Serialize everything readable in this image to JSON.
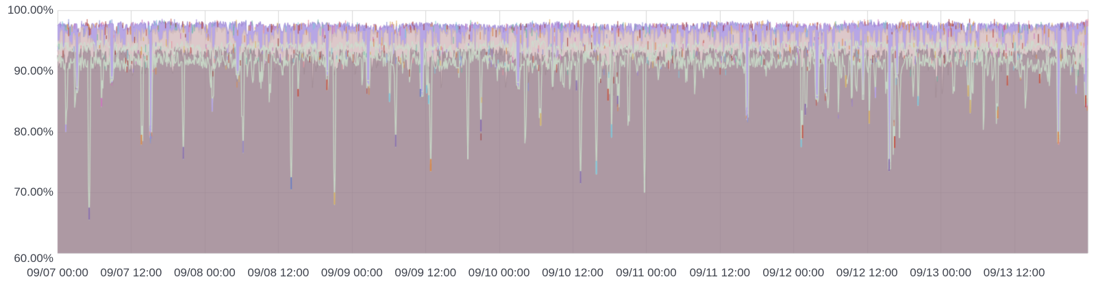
{
  "chart_data": {
    "type": "area",
    "title": "",
    "xlabel": "",
    "ylabel": "",
    "description": "Dense high-resolution percentage time series (monitoring-style graph) spanning 7 days; many overlapping translucent area/line series hover between 90% and 98% with frequent narrow downward spikes reaching 65%-85%",
    "ylim": [
      60,
      100
    ],
    "grid": true,
    "legend_position": "none",
    "background_color": "#ffffff",
    "label_color": "#3e424c",
    "grid_color": "#d8d8d8",
    "grid_overlay_color": "rgba(70,50,65,0.055)",
    "y_ticks": [
      {
        "label": "100.00%",
        "value": 100
      },
      {
        "label": "90.00%",
        "value": 90
      },
      {
        "label": "80.00%",
        "value": 80
      },
      {
        "label": "70.00%",
        "value": 70
      },
      {
        "label": "60.00%",
        "value": 60
      }
    ],
    "x_ticks": [
      "09/07 00:00",
      "09/07 12:00",
      "09/08 00:00",
      "09/08 12:00",
      "09/09 00:00",
      "09/09 12:00",
      "09/10 00:00",
      "09/10 12:00",
      "09/11 00:00",
      "09/11 12:00",
      "09/12 00:00",
      "09/12 12:00",
      "09/13 00:00",
      "09/13 12:00"
    ],
    "x_tick_interval_hours": 12,
    "x_total_intervals": 14,
    "points": 1500,
    "seed": 1337,
    "envelope_top_pct": 98.2,
    "series": [
      {
        "name": "lavender-band",
        "role": "area",
        "fill": "#b3a1e4",
        "stroke": "#a48fd8",
        "alpha": 0.95,
        "base": 97.7,
        "jitter": 0.4,
        "walk": 0.12,
        "dip_prob": 0.05,
        "dip_min": 0.5,
        "dip_max": 2.2,
        "dip_width": 3,
        "max": 98.4
      },
      {
        "name": "beige-band",
        "role": "area",
        "fill": "#dec9c8",
        "stroke": "#d2bab8",
        "alpha": 0.97,
        "base": 96.6,
        "jitter": 0.55,
        "walk": 0.18,
        "dip_prob": 0.17,
        "dip_min": 1.0,
        "dip_max": 5.0,
        "dip_width": 4,
        "deep_prob": 0.013,
        "deep_min": 6.5,
        "deep_max": 10.0,
        "max": 97.8
      },
      {
        "name": "mauve-base",
        "role": "area",
        "fill": "#ab97a1",
        "stroke": "#a18c96",
        "alpha": 0.97,
        "base": 92.9,
        "jitter": 0.85,
        "walk": 0.3,
        "dip_prob": 0.07,
        "dip_min": 1.0,
        "dip_max": 4.0,
        "dip_width": 5,
        "deep_prob": 0.006,
        "deep_min": 4.5,
        "deep_max": 6.5,
        "max": 95.3
      },
      {
        "name": "sage-upper-line",
        "role": "line",
        "stroke": "#cfdbce",
        "line_width": 1.2,
        "base": 94.1,
        "jitter": 0.85,
        "walk": 0.2,
        "dip_prob": 0.05,
        "dip_min": 1.0,
        "dip_max": 3.5,
        "dip_width": 2,
        "max": 96.8
      },
      {
        "name": "sage-main-line",
        "role": "line",
        "stroke": "#c7d6c6",
        "line_width": 1.4,
        "base": 91.7,
        "jitter": 1.25,
        "walk": 0.3,
        "dip_prob": 0.06,
        "dip_min": 2.0,
        "dip_max": 6.0,
        "dip_width": 2,
        "deep_prob": 0.02,
        "deep_min": 5.0,
        "deep_max": 15.0,
        "max": 94.5
      }
    ],
    "column_spike_prob": 0.008,
    "column_spike_range": [
      84,
      89
    ],
    "accent_colors": [
      "#c2564a",
      "#d98a4e",
      "#7fc4d8",
      "#cc73bd",
      "#8b93d6",
      "#a13c38",
      "#e0b45e",
      "#e8929e",
      "#74b8a8",
      "#9a7fd4"
    ],
    "tip_colors": [
      "#8a6fae",
      "#6f7fc0",
      "#d4b06a",
      "#d98a4e",
      "#c2564a",
      "#b3a1e4",
      "#7fc4d8",
      "#cc73bd"
    ],
    "notable_dips": [
      {
        "x_frac": 0.031,
        "min": 65.5,
        "kind": "needle",
        "tip": "#8a6fae"
      },
      {
        "x_frac": 0.09,
        "min": 79.0,
        "kind": "column",
        "tip": "#b3a1e4"
      },
      {
        "x_frac": 0.122,
        "min": 75.5,
        "kind": "needle",
        "tip": "#8a6fae"
      },
      {
        "x_frac": 0.18,
        "min": 76.5,
        "kind": "needle",
        "tip": "#9a8ac2"
      },
      {
        "x_frac": 0.227,
        "min": 70.5,
        "kind": "needle",
        "tip": "#6f7fc0"
      },
      {
        "x_frac": 0.269,
        "min": 68.0,
        "kind": "needle",
        "tip": "#d4b06a"
      },
      {
        "x_frac": 0.328,
        "min": 77.5,
        "kind": "needle",
        "tip": "#8a6fae"
      },
      {
        "x_frac": 0.362,
        "min": 73.5,
        "kind": "needle",
        "tip": "#d98a4e"
      },
      {
        "x_frac": 0.398,
        "min": 75.5,
        "kind": "needle",
        "tip": "#c9d6c9"
      },
      {
        "x_frac": 0.411,
        "min": 80.0,
        "kind": "needle",
        "tip": "#8a6fae"
      },
      {
        "x_frac": 0.469,
        "min": 81.0,
        "kind": "needle",
        "tip": "#c9d6c9"
      },
      {
        "x_frac": 0.508,
        "min": 71.5,
        "kind": "needle",
        "tip": "#8a6fae"
      },
      {
        "x_frac": 0.523,
        "min": 73.0,
        "kind": "needle",
        "tip": "#c9d6c9"
      },
      {
        "x_frac": 0.57,
        "min": 70.0,
        "kind": "needle",
        "tip": "#c9d6c9"
      },
      {
        "x_frac": 0.669,
        "min": 82.0,
        "kind": "column",
        "tip": "#b3a1e4"
      },
      {
        "x_frac": 0.807,
        "min": 73.5,
        "kind": "column",
        "tip": "#8a6fae"
      },
      {
        "x_frac": 0.817,
        "min": 79.0,
        "kind": "needle",
        "tip": "#c9d6c9"
      },
      {
        "x_frac": 0.971,
        "min": 78.0,
        "kind": "column",
        "tip": "#d98a4e"
      },
      {
        "x_frac": 0.998,
        "min": 84.0,
        "kind": "column",
        "tip": "#c2564a"
      }
    ]
  }
}
